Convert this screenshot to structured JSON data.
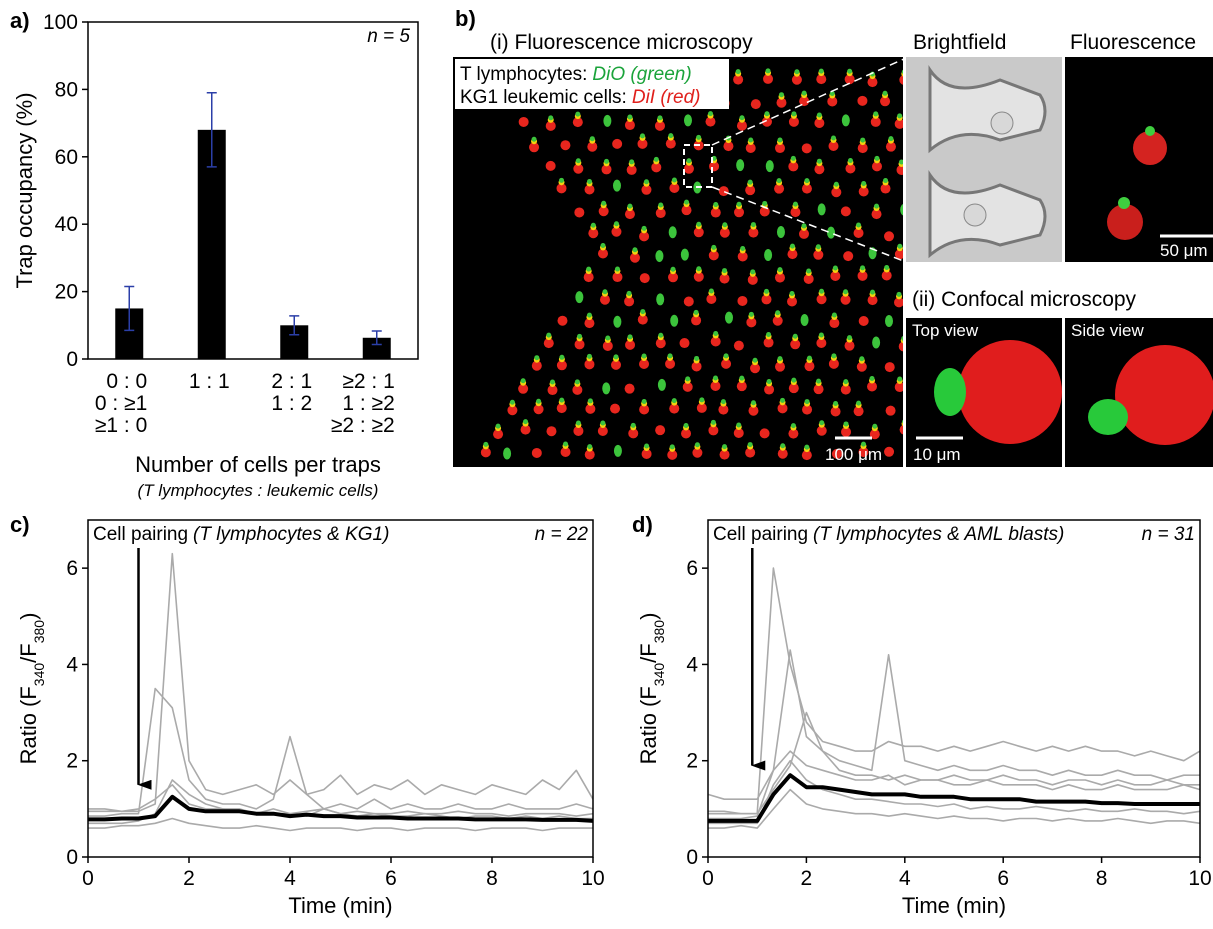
{
  "chart_data": [
    {
      "type": "bar",
      "panel": "a)",
      "annotation": "n = 5",
      "xlabel": "Number of cells per traps",
      "xlabel_note": "(T lymphocytes : leukemic cells)",
      "ylabel": "Trap occupancy (%)",
      "categories": [
        [
          "0 : 0",
          "0 : ≥1",
          "≥1 : 0"
        ],
        [
          "1 : 1"
        ],
        [
          "2 : 1",
          "1 : 2"
        ],
        [
          "≥2 : 1",
          "1 : ≥2",
          "≥2 : ≥2"
        ]
      ],
      "values": [
        15,
        68,
        10,
        6.3
      ],
      "errors": [
        6.5,
        11,
        2.8,
        2
      ],
      "color": "#000000",
      "error_color": "#2b3fa8",
      "ylim": [
        0,
        100
      ],
      "yticks": [
        0,
        20,
        40,
        60,
        80,
        100
      ]
    },
    {
      "type": "line",
      "panel": "c)",
      "annotation": "Cell pairing",
      "annotation_note": "(T lymphocytes & KG1)",
      "count": "n = 22",
      "arrow": {
        "x": 1,
        "y": 1.5
      },
      "xlabel": "Time (min)",
      "ylabel": [
        "Ratio (F",
        "340",
        "/F",
        "380",
        ")"
      ],
      "xlim": [
        0,
        10
      ],
      "xticks": [
        0,
        2,
        4,
        6,
        8,
        10
      ],
      "ylim": [
        0,
        7
      ],
      "yticks": [
        0,
        2,
        4,
        6
      ],
      "x": [
        0,
        0.33,
        0.67,
        1,
        1.33,
        1.67,
        2,
        2.33,
        2.67,
        3,
        3.33,
        3.67,
        4,
        4.33,
        4.67,
        5,
        5.33,
        5.67,
        6,
        6.33,
        6.67,
        7,
        7.33,
        7.67,
        8,
        8.33,
        8.67,
        9,
        9.33,
        9.67,
        10
      ],
      "series": [
        {
          "color": "#aaaaaa",
          "values": [
            0.95,
            0.95,
            0.95,
            0.95,
            1.1,
            6.3,
            2.0,
            1.4,
            1.3,
            1.4,
            1.5,
            1.3,
            1.6,
            1.3,
            1.4,
            1.7,
            1.3,
            1.5,
            1.4,
            1.6,
            1.3,
            1.5,
            1.4,
            1.3,
            1.5,
            1.4,
            1.3,
            1.6,
            1.4,
            1.8,
            1.2
          ]
        },
        {
          "color": "#aaaaaa",
          "values": [
            0.85,
            0.85,
            0.9,
            0.9,
            3.5,
            3.1,
            1.6,
            1.2,
            1.1,
            1.1,
            1.0,
            1.2,
            2.5,
            1.3,
            1.0,
            1.1,
            1.0,
            1.2,
            1.0,
            1.1,
            1.0,
            1.0,
            1.1,
            1.0,
            1.0,
            1.1,
            1.0,
            1.0,
            1.0,
            1.1,
            1.0
          ]
        },
        {
          "color": "#aaaaaa",
          "values": [
            0.7,
            0.7,
            0.7,
            0.75,
            0.9,
            1.6,
            1.3,
            1.1,
            1.0,
            1.0,
            0.9,
            0.9,
            0.9,
            0.85,
            1.0,
            0.9,
            0.85,
            0.9,
            0.85,
            0.85,
            0.9,
            0.85,
            0.8,
            0.85,
            0.85,
            0.8,
            0.85,
            0.8,
            0.85,
            0.8,
            0.8
          ]
        },
        {
          "color": "#aaaaaa",
          "values": [
            0.6,
            0.6,
            0.65,
            0.65,
            0.7,
            0.8,
            0.7,
            0.65,
            0.6,
            0.6,
            0.65,
            0.6,
            0.55,
            0.6,
            0.6,
            0.6,
            0.55,
            0.6,
            0.6,
            0.55,
            0.6,
            0.6,
            0.6,
            0.55,
            0.6,
            0.6,
            0.6,
            0.55,
            0.6,
            0.6,
            0.6
          ]
        },
        {
          "color": "#aaaaaa",
          "values": [
            1.0,
            1.0,
            0.95,
            1.0,
            1.2,
            1.5,
            1.1,
            1.0,
            1.0,
            0.95,
            0.9,
            1.0,
            0.9,
            0.95,
            1.0,
            0.9,
            0.95,
            0.9,
            0.9,
            0.95,
            0.9,
            0.9,
            0.95,
            0.9,
            0.9,
            0.85,
            0.9,
            0.9,
            0.9,
            0.85,
            0.9
          ]
        },
        {
          "color": "#000000",
          "values": [
            0.78,
            0.78,
            0.8,
            0.8,
            0.85,
            1.25,
            1.0,
            0.95,
            0.95,
            0.95,
            0.9,
            0.9,
            0.85,
            0.88,
            0.85,
            0.85,
            0.82,
            0.82,
            0.82,
            0.8,
            0.8,
            0.8,
            0.8,
            0.78,
            0.78,
            0.78,
            0.78,
            0.77,
            0.77,
            0.77,
            0.75
          ]
        }
      ]
    },
    {
      "type": "line",
      "panel": "d)",
      "annotation": "Cell pairing",
      "annotation_note": "(T lymphocytes & AML blasts)",
      "count": "n = 31",
      "arrow": {
        "x": 0.9,
        "y": 1.9
      },
      "xlabel": "Time (min)",
      "ylabel": [
        "Ratio (F",
        "340",
        "/F",
        "380",
        ")"
      ],
      "xlim": [
        0,
        10
      ],
      "xticks": [
        0,
        2,
        4,
        6,
        8,
        10
      ],
      "ylim": [
        0,
        7
      ],
      "yticks": [
        0,
        2,
        4,
        6
      ],
      "x": [
        0,
        0.33,
        0.67,
        1,
        1.33,
        1.67,
        2,
        2.33,
        2.67,
        3,
        3.33,
        3.67,
        4,
        4.33,
        4.67,
        5,
        5.33,
        5.67,
        6,
        6.33,
        6.67,
        7,
        7.33,
        7.67,
        8,
        8.33,
        8.67,
        9,
        9.33,
        9.67,
        10
      ],
      "series": [
        {
          "color": "#aaaaaa",
          "values": [
            0.9,
            0.9,
            0.9,
            0.9,
            6.0,
            4.0,
            2.8,
            2.4,
            2.3,
            2.2,
            2.2,
            2.4,
            2.3,
            2.3,
            2.2,
            2.3,
            2.2,
            2.3,
            2.4,
            2.3,
            2.2,
            2.3,
            2.2,
            2.3,
            2.2,
            2.2,
            2.1,
            2.2,
            2.1,
            2.0,
            2.2
          ]
        },
        {
          "color": "#aaaaaa",
          "values": [
            0.8,
            0.8,
            0.8,
            0.85,
            1.8,
            4.3,
            2.5,
            2.2,
            2.0,
            1.9,
            1.8,
            4.2,
            2.0,
            1.9,
            1.8,
            1.9,
            1.8,
            1.8,
            1.9,
            1.8,
            1.8,
            1.7,
            1.8,
            1.7,
            1.7,
            1.8,
            1.7,
            1.7,
            1.6,
            1.7,
            1.7
          ]
        },
        {
          "color": "#aaaaaa",
          "values": [
            1.3,
            1.2,
            1.2,
            1.2,
            1.8,
            2.2,
            1.9,
            1.8,
            1.7,
            1.6,
            1.6,
            1.7,
            1.5,
            1.6,
            1.6,
            1.5,
            1.5,
            1.6,
            1.5,
            1.5,
            1.5,
            1.4,
            1.5,
            1.4,
            1.4,
            1.5,
            1.4,
            1.4,
            1.4,
            1.5,
            1.4
          ]
        },
        {
          "color": "#aaaaaa",
          "values": [
            0.6,
            0.6,
            0.65,
            0.6,
            1.0,
            1.4,
            1.1,
            1.0,
            0.95,
            0.9,
            0.9,
            0.85,
            0.9,
            0.85,
            0.8,
            0.85,
            0.8,
            0.8,
            0.75,
            0.8,
            0.8,
            0.75,
            0.8,
            0.75,
            0.75,
            0.8,
            0.75,
            0.7,
            0.75,
            0.75,
            0.7
          ]
        },
        {
          "color": "#aaaaaa",
          "values": [
            0.7,
            0.7,
            0.7,
            0.7,
            1.5,
            2.0,
            1.6,
            1.4,
            1.3,
            1.2,
            1.2,
            1.15,
            1.1,
            1.1,
            1.05,
            1.1,
            1.0,
            1.05,
            1.0,
            1.0,
            1.05,
            1.0,
            0.95,
            1.0,
            0.95,
            0.95,
            1.0,
            0.95,
            0.95,
            0.9,
            0.95
          ]
        },
        {
          "color": "#aaaaaa",
          "values": [
            0.95,
            0.95,
            0.9,
            0.9,
            1.4,
            1.9,
            3.0,
            2.2,
            1.8,
            1.7,
            1.7,
            1.6,
            1.7,
            1.6,
            1.6,
            1.7,
            1.6,
            1.6,
            1.7,
            1.6,
            1.6,
            1.5,
            1.6,
            1.6,
            1.5,
            1.6,
            1.5,
            1.5,
            1.6,
            1.5,
            1.5
          ]
        },
        {
          "color": "#000000",
          "values": [
            0.75,
            0.75,
            0.75,
            0.75,
            1.3,
            1.7,
            1.45,
            1.45,
            1.4,
            1.35,
            1.3,
            1.3,
            1.3,
            1.25,
            1.25,
            1.25,
            1.2,
            1.2,
            1.2,
            1.2,
            1.15,
            1.15,
            1.15,
            1.15,
            1.12,
            1.12,
            1.1,
            1.1,
            1.1,
            1.1,
            1.1
          ]
        }
      ]
    }
  ],
  "panel_b": {
    "label": "b)",
    "fluorescence_title": "(i) Fluorescence microscopy",
    "legend": [
      {
        "name": "T lymphocytes:",
        "dye": "DiO (green)"
      },
      {
        "name": "KG1 leukemic cells:",
        "dye": "DiI (red)"
      }
    ],
    "brightfield": "Brightfield",
    "fluorescence": "Fluorescence",
    "scale_50": "50 μm",
    "scale_100": "100 μm",
    "confocal_title": "(ii) Confocal microscopy",
    "top_view": "Top view",
    "side_view": "Side view",
    "scale_10": "10 μm"
  }
}
